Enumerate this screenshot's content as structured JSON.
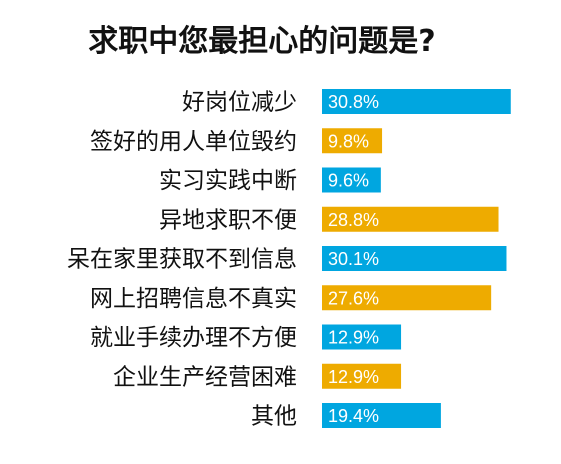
{
  "chart_data": {
    "type": "bar",
    "orientation": "horizontal",
    "title": "求职中您最担心的问题是?",
    "categories": [
      "好岗位减少",
      "签好的用人单位毁约",
      "实习实践中断",
      "异地求职不便",
      "呆在家里获取不到信息",
      "网上招聘信息不真实",
      "就业手续办理不方便",
      "企业生产经营困难",
      "其他"
    ],
    "values": [
      30.8,
      9.8,
      9.6,
      28.8,
      30.1,
      27.6,
      12.9,
      12.9,
      19.4
    ],
    "value_labels": [
      "30.8%",
      "9.8%",
      "9.6%",
      "28.8%",
      "30.1%",
      "27.6%",
      "12.9%",
      "12.9%",
      "19.4%"
    ],
    "unit": "%",
    "bar_colors": [
      "#00a6e0",
      "#eeab00",
      "#00a6e0",
      "#eeab00",
      "#00a6e0",
      "#eeab00",
      "#00a6e0",
      "#eeab00",
      "#00a6e0"
    ],
    "xlim": [
      0,
      31
    ],
    "grid": false,
    "legend": "none"
  }
}
